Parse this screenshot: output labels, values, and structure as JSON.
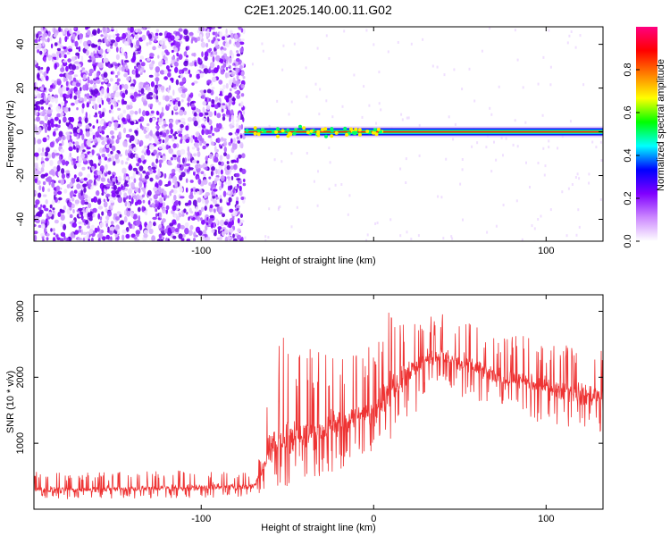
{
  "title": "C2E1.2025.140.00.11.G02",
  "chart_data": [
    {
      "type": "heatmap",
      "xlabel": "Height of straight line (km)",
      "ylabel": "Frequency (Hz)",
      "xlim": [
        -197,
        133
      ],
      "ylim": [
        -50,
        48
      ],
      "xticks": [
        -100,
        0,
        100
      ],
      "xtick_labels": [
        "-100",
        "",
        "100"
      ],
      "yticks": [
        -40,
        -20,
        0,
        20,
        40
      ],
      "ytick_labels": [
        "-40",
        "-20",
        "0",
        "20",
        "40"
      ],
      "noise_region_x": [
        -197,
        -75
      ],
      "carrier_frequency_hz": 0,
      "carrier_start_x": -75,
      "colorbar": {
        "label": "Normalized spectral amplitude",
        "range": [
          0,
          1
        ],
        "ticks": [
          0.0,
          0.2,
          0.4,
          0.6,
          0.8
        ],
        "tick_labels": [
          "0.0",
          "0.2",
          "0.4",
          "0.6",
          "0.8"
        ],
        "colors": [
          "#ffffff",
          "#cc88ff",
          "#8000ff",
          "#0000ff",
          "#00ffff",
          "#00ff00",
          "#ffff00",
          "#ff8000",
          "#ff0000",
          "#ff0080"
        ]
      }
    },
    {
      "type": "line",
      "xlabel": "Height of straight line (km)",
      "ylabel": "SNR (10 * v/v)",
      "xlim": [
        -197,
        133
      ],
      "ylim": [
        0,
        3250
      ],
      "xticks": [
        -100,
        0,
        100
      ],
      "xtick_labels": [
        "-100",
        "0",
        "100"
      ],
      "yticks": [
        1000,
        2000,
        3000
      ],
      "ytick_labels": [
        "1000",
        "2000",
        "3000"
      ],
      "color": "#ee3333",
      "envelope": {
        "x": [
          -197,
          -180,
          -160,
          -140,
          -120,
          -100,
          -80,
          -70,
          -65,
          -60,
          -50,
          -40,
          -30,
          -20,
          -10,
          0,
          10,
          20,
          30,
          40,
          50,
          60,
          70,
          80,
          90,
          100,
          110,
          120,
          133
        ],
        "min": [
          150,
          150,
          160,
          160,
          170,
          170,
          180,
          190,
          250,
          300,
          300,
          450,
          500,
          600,
          700,
          850,
          1050,
          1300,
          1650,
          1950,
          1700,
          1650,
          1500,
          1450,
          1300,
          1300,
          1250,
          1200,
          1150
        ],
        "max": [
          600,
          550,
          560,
          580,
          600,
          620,
          600,
          620,
          900,
          2500,
          2700,
          2500,
          2400,
          2300,
          2400,
          2500,
          3100,
          2800,
          2900,
          3000,
          2900,
          2800,
          2700,
          2650,
          2700,
          2500,
          2500,
          2450,
          2400
        ],
        "mean": [
          300,
          290,
          300,
          310,
          320,
          330,
          340,
          350,
          550,
          1000,
          1100,
          1100,
          1200,
          1300,
          1400,
          1500,
          1850,
          2100,
          2250,
          2350,
          2200,
          2150,
          2000,
          1950,
          1900,
          1850,
          1800,
          1750,
          1700
        ]
      }
    }
  ]
}
